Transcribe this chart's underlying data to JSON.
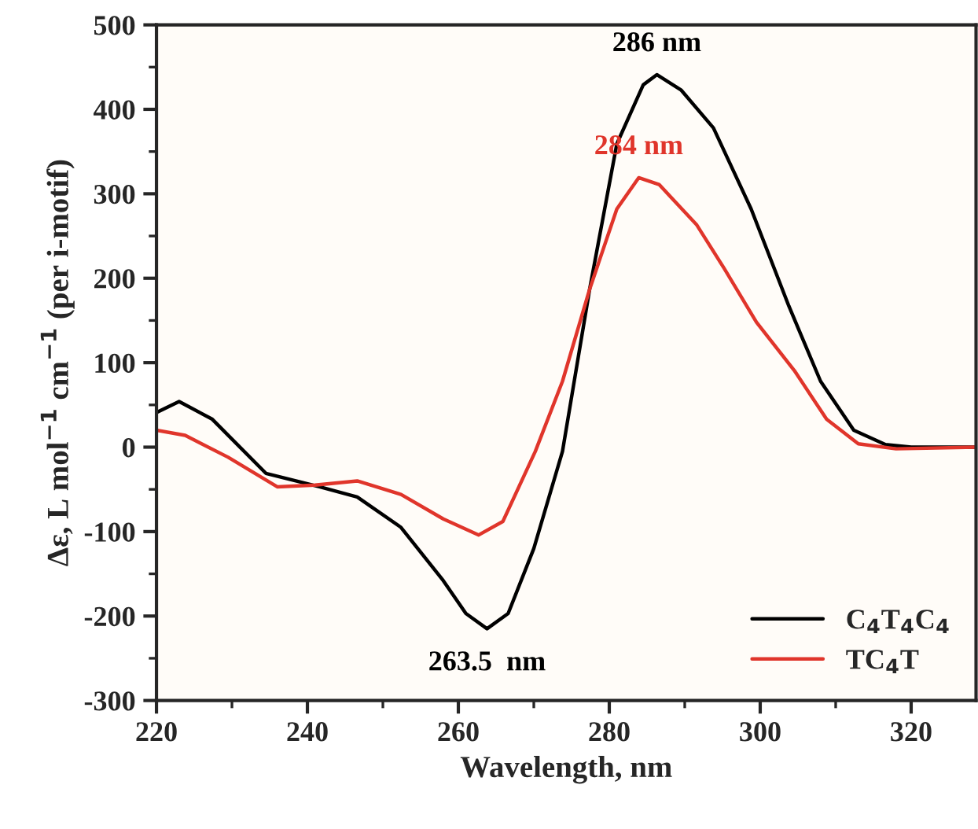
{
  "chart_data": {
    "type": "line",
    "xlabel": "Wavelength, nm",
    "ylabel": "Δε, L mol$^{−1}$ cm$^{−1}$ (per i-motif)",
    "xlim": [
      220,
      328.6
    ],
    "ylim": [
      -300,
      500
    ],
    "xticks": [
      220,
      240,
      260,
      280,
      300,
      320
    ],
    "yticks": [
      -300,
      -200,
      -100,
      0,
      100,
      200,
      300,
      400,
      500
    ],
    "grid": false,
    "legend": "bottom right",
    "marker": "none",
    "line_style": "solid",
    "series": [
      {
        "name": "C$_{4}$T$_{4}$C$_{4}$",
        "color": "#000000",
        "x": [
          220,
          223,
          227.4,
          234.5,
          241.6,
          246.6,
          252.4,
          258,
          261,
          263.8,
          266.6,
          270,
          273.8,
          277.4,
          281,
          284.5,
          286.3,
          289.5,
          293.8,
          298.8,
          303.8,
          308,
          312.4,
          316.6,
          320,
          328.6
        ],
        "values": [
          41,
          54,
          33,
          -31,
          -47,
          -59,
          -95,
          -158,
          -197,
          -215,
          -197,
          -120,
          -5,
          187,
          359,
          429,
          441,
          423,
          378,
          282,
          167,
          78,
          20,
          3,
          0,
          0
        ]
      },
      {
        "name": "TC$_{4}$T",
        "color": "#e0352b",
        "x": [
          220,
          223.8,
          229.5,
          236,
          241,
          246.6,
          252.4,
          258,
          262.7,
          265.9,
          270.2,
          273.8,
          277.4,
          281,
          283.9,
          286.6,
          291.6,
          295.2,
          299.5,
          304.5,
          308.8,
          313,
          318,
          328.6
        ],
        "values": [
          20,
          14,
          -12,
          -47,
          -45,
          -40,
          -56,
          -85,
          -104,
          -88,
          -5,
          78,
          187,
          282,
          319,
          311,
          263,
          212,
          148,
          91,
          33,
          4,
          -2,
          0
        ]
      }
    ],
    "annotations": [
      {
        "text": "286 nm",
        "x": 286.3,
        "y": 441
      },
      {
        "text": "284 nm",
        "x": 283.9,
        "y": 319
      },
      {
        "text": "263.5  nm",
        "x": 263.8,
        "y": -215
      }
    ]
  }
}
